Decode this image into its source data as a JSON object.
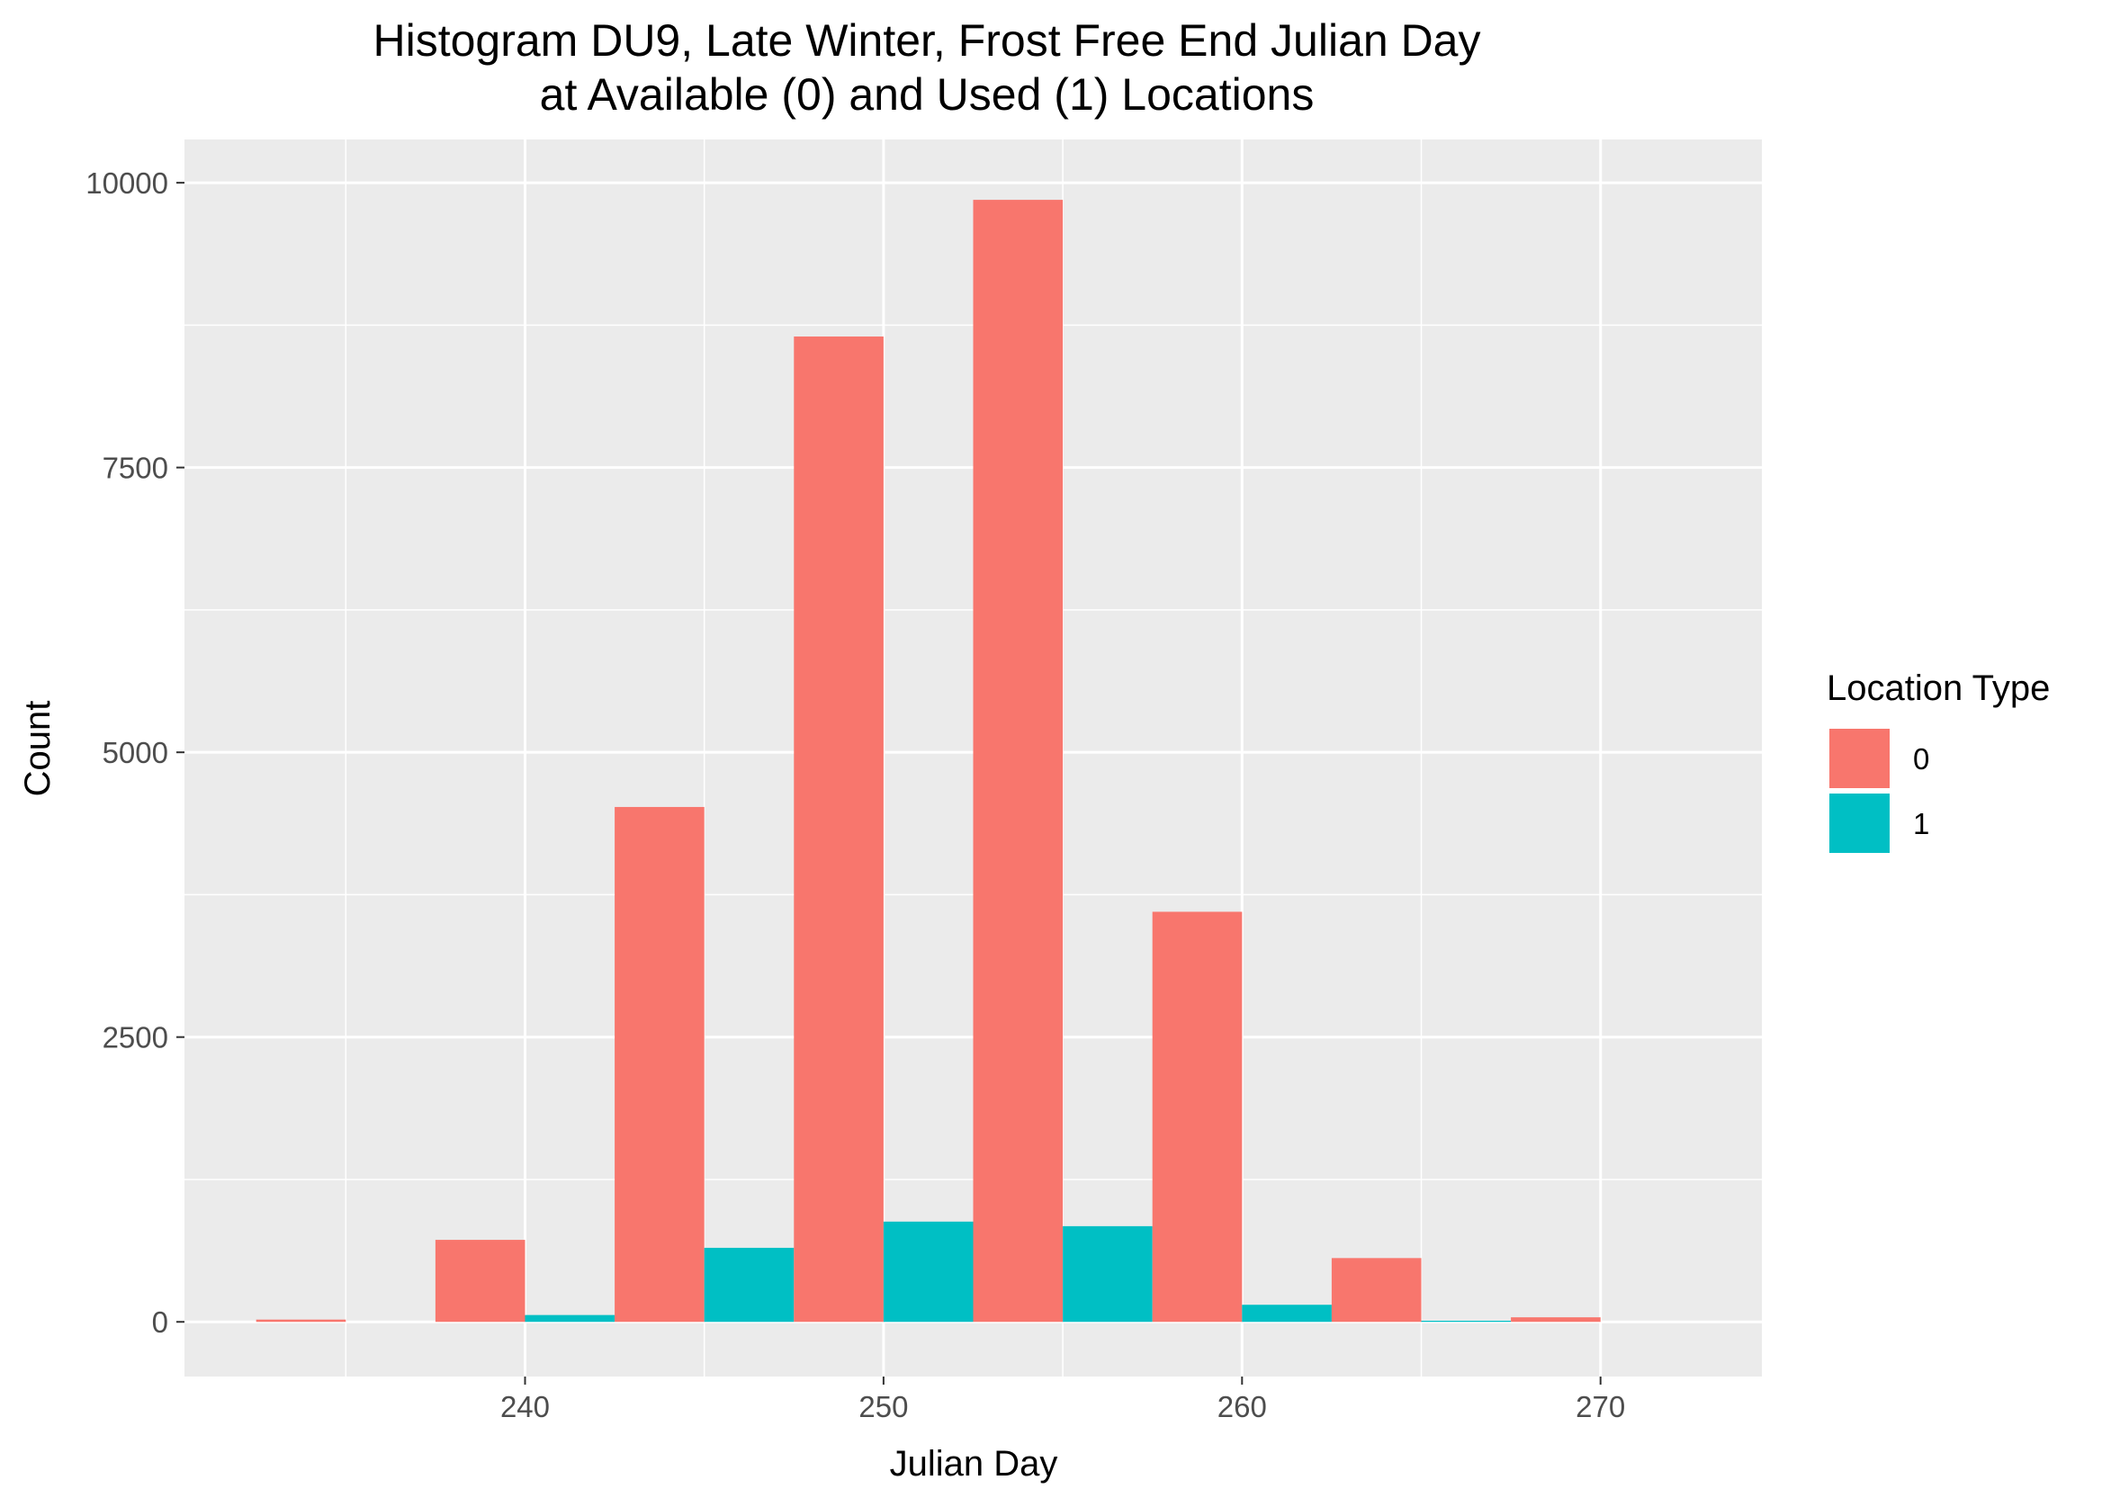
{
  "chart_data": {
    "type": "bar",
    "title_lines": [
      "Histogram DU9, Late Winter, Frost Free End Julian Day",
      "at Available (0) and Used (1) Locations"
    ],
    "xlabel": "Julian Day",
    "ylabel": "Count",
    "x_ticks": [
      240,
      250,
      260,
      270
    ],
    "y_ticks": [
      0,
      2500,
      5000,
      7500,
      10000
    ],
    "xlim": [
      230.5,
      274.5
    ],
    "ylim": [
      -480,
      10380
    ],
    "bin_width": 5,
    "bin_centers": [
      235,
      240,
      245,
      250,
      255,
      260,
      265,
      270
    ],
    "series": [
      {
        "name": "0",
        "color": "#F8766D",
        "values": [
          20,
          720,
          4520,
          8650,
          9850,
          3600,
          560,
          40
        ]
      },
      {
        "name": "1",
        "color": "#00BFC4",
        "values": [
          0,
          60,
          650,
          880,
          840,
          150,
          10,
          0
        ]
      }
    ],
    "legend": {
      "title": "Location Type",
      "position": "right"
    },
    "grid": true,
    "panel_background": "#EBEBEB",
    "grid_color": "#FFFFFF"
  }
}
